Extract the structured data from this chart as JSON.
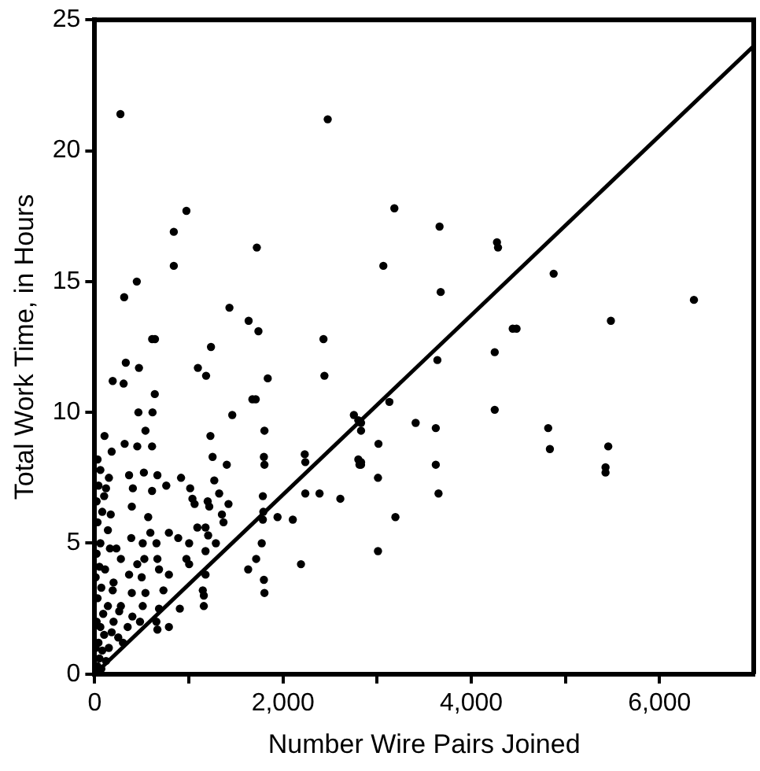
{
  "chart_data": {
    "type": "scatter",
    "xlabel": "Number Wire Pairs Joined",
    "ylabel": "Total Work Time, in Hours",
    "xlim": [
      0,
      7000
    ],
    "ylim": [
      0,
      25
    ],
    "xticks": [
      0,
      {
        "value": 1000,
        "label": null
      },
      {
        "value": 2000,
        "label": "2,000"
      },
      {
        "value": 3000,
        "label": null
      },
      {
        "value": 4000,
        "label": "4,000"
      },
      {
        "value": 5000,
        "label": null
      },
      {
        "value": 6000,
        "label": "6,000"
      }
    ],
    "yticks": [
      0,
      5,
      10,
      15,
      20,
      25
    ],
    "grid": false,
    "legend": false,
    "series": [
      {
        "type": "scatter",
        "marker": "circle",
        "color": "#000000",
        "x": [
          273,
          2475,
          974,
          840,
          1722,
          840,
          447,
          313,
          1431,
          1635,
          1739,
          610,
          640,
          1235,
          2430,
          330,
          470,
          1096,
          1183,
          1838,
          2440,
          191,
          307,
          638,
          464,
          614,
          1675,
          1710,
          1461,
          539,
          104,
          318,
          452,
          609,
          1229,
          1803,
          180,
          1252,
          1403,
          1797,
          1803,
          2231,
          2237,
          2753,
          2800,
          2800,
          2812,
          151,
          365,
          522,
          666,
          917,
          1270,
          405,
          609,
          760,
          1014,
          1322,
          1038,
          1061,
          1200,
          1217,
          1421,
          1786,
          2237,
          2388,
          2609,
          394,
          568,
          1351,
          1368,
          1791,
          1786,
          1942,
          2104,
          388,
          591,
          788,
          887,
          1003,
          1090,
          1177,
          1205,
          1287,
          510,
          656,
          1774,
          1177,
          162,
          278,
          527,
          666,
          974,
          1003,
          1715,
          1630,
          2191,
          452,
          683,
          365,
          499,
          788,
          1177,
          191,
          394,
          539,
          730,
          1148,
          1159,
          1159,
          1797,
          1803,
          278,
          510,
          683,
          904,
          481,
          655,
          666,
          788,
          3183,
          3663,
          4273,
          4284,
          3066,
          4875,
          3675,
          6365,
          5483,
          4440,
          4481,
          4249,
          3640,
          2829,
          2829,
          3130,
          2829,
          2829,
          3014,
          3409,
          3623,
          4249,
          4817,
          4835,
          5455,
          5426,
          5426,
          3009,
          3623,
          3652,
          3194,
          3009,
          30,
          50,
          80,
          40,
          100,
          60,
          120,
          150,
          20,
          90,
          140,
          30,
          70,
          180,
          200,
          250,
          300,
          10,
          50,
          110,
          20,
          60,
          140,
          30,
          80,
          20,
          100,
          40,
          60,
          30,
          200,
          260,
          350,
          400,
          230,
          170,
          120,
          10,
          70
        ],
        "values": [
          21.4,
          21.2,
          17.7,
          16.9,
          16.3,
          15.6,
          15.0,
          14.4,
          14.0,
          13.5,
          13.1,
          12.8,
          12.8,
          12.5,
          12.8,
          11.9,
          11.7,
          11.7,
          11.4,
          11.3,
          11.4,
          11.2,
          11.1,
          10.7,
          10.0,
          10.0,
          10.5,
          10.5,
          9.9,
          9.3,
          9.1,
          8.8,
          8.7,
          8.7,
          9.1,
          9.3,
          8.5,
          8.3,
          8.0,
          8.3,
          8.0,
          8.4,
          8.1,
          9.9,
          9.7,
          8.2,
          8.0,
          7.5,
          7.6,
          7.7,
          7.6,
          7.5,
          7.4,
          7.1,
          7.0,
          7.2,
          7.1,
          6.9,
          6.7,
          6.5,
          6.6,
          6.4,
          6.5,
          6.8,
          6.9,
          6.9,
          6.7,
          6.4,
          6.0,
          6.1,
          5.8,
          6.2,
          5.9,
          6.0,
          5.9,
          5.2,
          5.4,
          5.4,
          5.2,
          5.0,
          5.6,
          5.6,
          5.3,
          5.0,
          5.0,
          5.0,
          5.0,
          4.7,
          4.8,
          4.4,
          4.4,
          4.4,
          4.4,
          4.2,
          4.4,
          4.0,
          4.2,
          4.2,
          4.0,
          3.8,
          3.7,
          3.8,
          3.8,
          3.2,
          3.1,
          3.1,
          3.2,
          3.2,
          3.0,
          2.6,
          3.6,
          3.1,
          2.6,
          2.6,
          2.5,
          2.5,
          2.0,
          2.0,
          1.7,
          1.8,
          17.8,
          17.1,
          16.5,
          16.3,
          15.6,
          15.3,
          14.6,
          14.3,
          13.5,
          13.2,
          13.2,
          12.3,
          12.0,
          9.6,
          9.3,
          10.4,
          8.1,
          8.0,
          8.8,
          9.6,
          9.4,
          10.1,
          9.4,
          8.6,
          8.7,
          7.9,
          7.7,
          7.5,
          8.0,
          6.9,
          6.0,
          4.7,
          0.3,
          0.6,
          0.9,
          1.2,
          1.5,
          1.8,
          0.5,
          1.0,
          2.0,
          2.3,
          2.6,
          2.9,
          3.3,
          1.6,
          2.0,
          1.4,
          1.2,
          3.7,
          4.1,
          4.0,
          4.6,
          5.0,
          5.5,
          5.8,
          6.2,
          6.6,
          6.8,
          7.2,
          7.8,
          8.2,
          3.5,
          2.4,
          1.8,
          2.2,
          4.8,
          6.1,
          7.1,
          1.0,
          0.2
        ]
      },
      {
        "type": "line",
        "marker": "none",
        "line_style": "solid",
        "color": "#000000",
        "x": [
          0,
          7000
        ],
        "values": [
          0,
          24
        ]
      }
    ]
  }
}
